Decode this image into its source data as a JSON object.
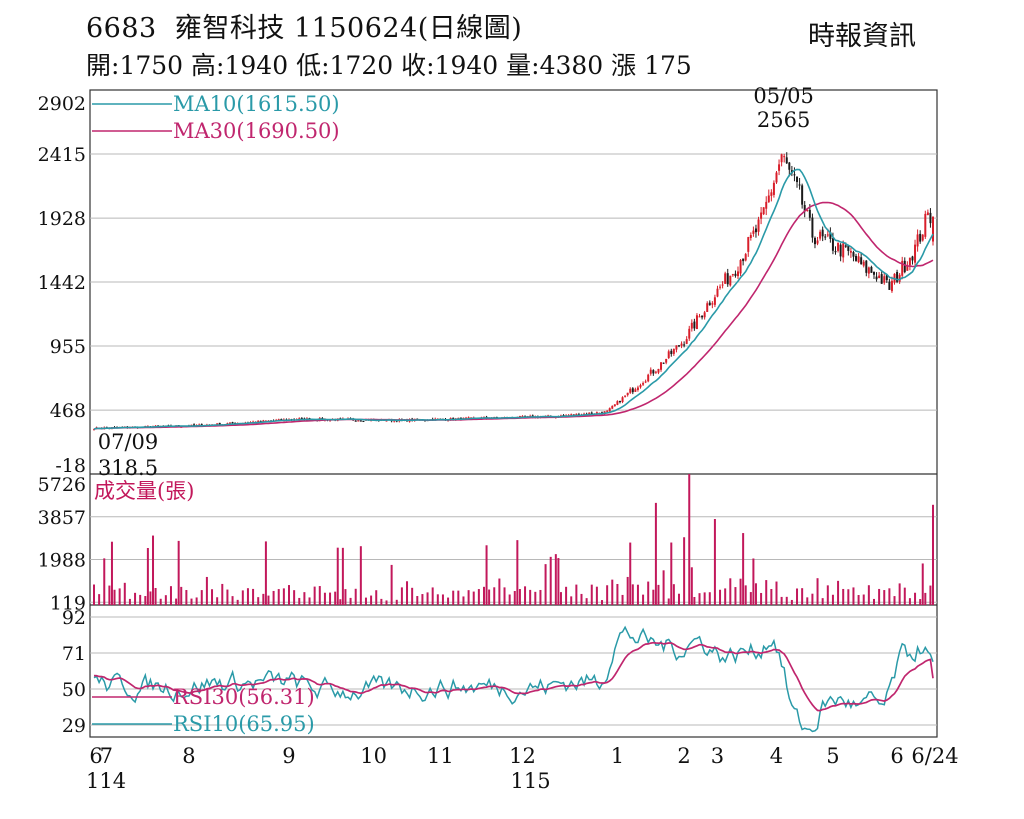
{
  "header": {
    "code": "6683",
    "name": "雍智科技",
    "date_label": "1150624(日線圖)",
    "source": "時報資訊",
    "stats": [
      {
        "label": "開",
        "value": "1750"
      },
      {
        "label": "高",
        "value": "1940"
      },
      {
        "label": "低",
        "value": "1720"
      },
      {
        "label": "收",
        "value": "1940"
      },
      {
        "label": "量",
        "value": "4380"
      },
      {
        "label": "漲",
        "value": "175"
      }
    ]
  },
  "chart_data": [
    {
      "type": "candlestick",
      "ylim": [
        -18,
        2902
      ],
      "yticks": [
        "2902",
        "2415",
        "1928",
        "1442",
        "955",
        "468",
        "-18"
      ],
      "legend": [
        {
          "label": "MA10(1615.50)",
          "color": "#2a9aa8"
        },
        {
          "label": "MA30(1690.50)",
          "color": "#c0266e"
        }
      ],
      "annotations": [
        {
          "date": "05/05",
          "value": "2565"
        },
        {
          "date": "07/09",
          "value": "318.5"
        }
      ],
      "colors": {
        "up": "#d81e2a",
        "down": "#1a1a1a"
      },
      "key_points": {
        "x_day": [
          0,
          40,
          80,
          120,
          160,
          180,
          200,
          220,
          230,
          240,
          250,
          260,
          268,
          275,
          280,
          285,
          290,
          295,
          300,
          305,
          310,
          315,
          320,
          325
        ],
        "close": [
          330,
          350,
          400,
          390,
          410,
          420,
          455,
          800,
          1000,
          1300,
          1550,
          1900,
          2400,
          2100,
          1800,
          1750,
          1700,
          1650,
          1550,
          1500,
          1400,
          1550,
          1700,
          1940
        ]
      }
    },
    {
      "type": "bar",
      "title": "成交量(張)",
      "yticks": [
        "5726",
        "3857",
        "1988",
        "119"
      ],
      "ylim": [
        0,
        5726
      ],
      "color": "#c2185b"
    },
    {
      "type": "line",
      "yticks": [
        "92",
        "71",
        "50",
        "29"
      ],
      "ylim": [
        22,
        99
      ],
      "series": [
        {
          "name": "RSI30(56.31)",
          "color": "#c0266e"
        },
        {
          "name": "RSI10(65.95)",
          "color": "#2a9aa8"
        }
      ]
    }
  ],
  "xaxis": {
    "months": [
      "6",
      "7",
      "8",
      "9",
      "10",
      "11",
      "12",
      "1",
      "2",
      "3",
      "4",
      "5",
      "6",
      "6/24"
    ],
    "years": [
      {
        "label": "114"
      },
      {
        "label": "115"
      }
    ]
  }
}
